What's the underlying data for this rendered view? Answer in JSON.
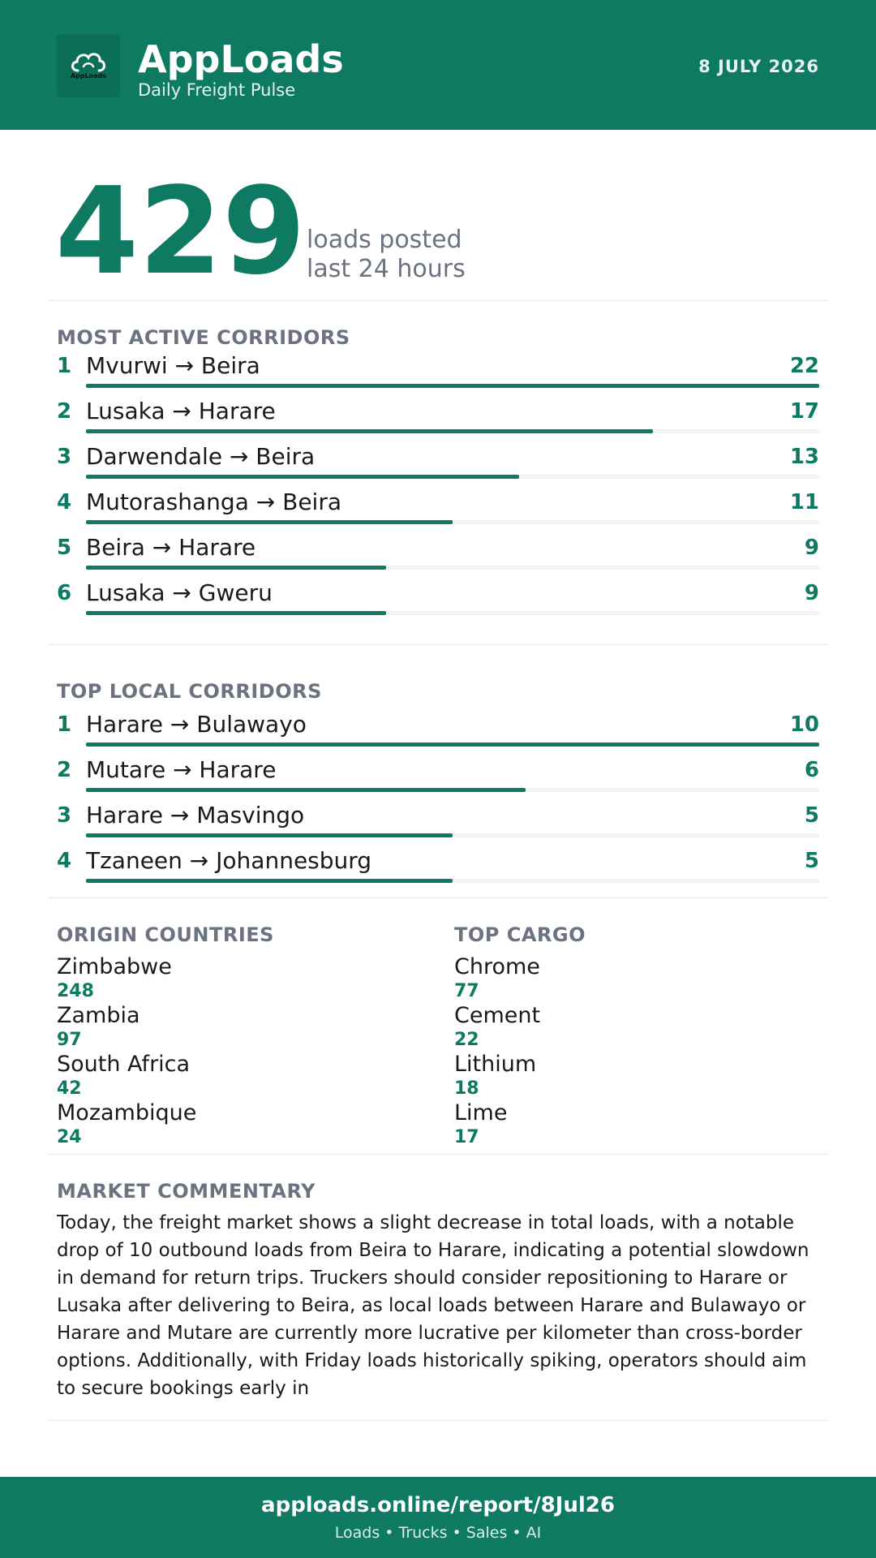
{
  "header": {
    "brand": "AppLoads",
    "tagline": "Daily Freight Pulse",
    "date": "8 JULY 2026",
    "logo_text": "AppLoads",
    "logo_icon": "cloud-icon"
  },
  "summary": {
    "count": "429",
    "caption_line1": "loads posted",
    "caption_line2": "last 24 hours"
  },
  "most_active": {
    "title": "MOST ACTIVE CORRIDORS",
    "max": 22,
    "items": [
      {
        "rank": "1",
        "route": "Mvurwi → Beira",
        "count": 22
      },
      {
        "rank": "2",
        "route": "Lusaka → Harare",
        "count": 17
      },
      {
        "rank": "3",
        "route": "Darwendale → Beira",
        "count": 13
      },
      {
        "rank": "4",
        "route": "Mutorashanga → Beira",
        "count": 11
      },
      {
        "rank": "5",
        "route": "Beira → Harare",
        "count": 9
      },
      {
        "rank": "6",
        "route": "Lusaka → Gweru",
        "count": 9
      }
    ]
  },
  "top_local": {
    "title": "TOP LOCAL CORRIDORS",
    "max": 10,
    "items": [
      {
        "rank": "1",
        "route": "Harare → Bulawayo",
        "count": 10
      },
      {
        "rank": "2",
        "route": "Mutare → Harare",
        "count": 6
      },
      {
        "rank": "3",
        "route": "Harare → Masvingo",
        "count": 5
      },
      {
        "rank": "4",
        "route": "Tzaneen → Johannesburg",
        "count": 5
      }
    ]
  },
  "origin_countries": {
    "title": "ORIGIN COUNTRIES",
    "items": [
      {
        "name": "Zimbabwe",
        "value": "248"
      },
      {
        "name": "Zambia",
        "value": "97"
      },
      {
        "name": "South Africa",
        "value": "42"
      },
      {
        "name": "Mozambique",
        "value": "24"
      }
    ]
  },
  "top_cargo": {
    "title": "TOP CARGO",
    "items": [
      {
        "name": "Chrome",
        "value": "77"
      },
      {
        "name": "Cement",
        "value": "22"
      },
      {
        "name": "Lithium",
        "value": "18"
      },
      {
        "name": "Lime",
        "value": "17"
      }
    ]
  },
  "commentary": {
    "title": "MARKET COMMENTARY",
    "text": "Today, the freight market shows a slight decrease in total loads, with a notable drop of 10 outbound loads from Beira to Harare, indicating a potential slowdown in demand for return trips. Truckers should consider repositioning to Harare or Lusaka after delivering to Beira, as local loads between Harare and Bulawayo or Harare and Mutare are currently more lucrative per kilometer than cross-border options. Additionally, with Friday loads historically spiking, operators should aim to secure bookings early in"
  },
  "footer": {
    "url": "apploads.online/report/8Jul26",
    "sub": "Loads • Trucks • Sales • AI"
  },
  "colors": {
    "brand": "#0e7a62",
    "muted": "#6b7280",
    "track": "#f1f2f3"
  }
}
